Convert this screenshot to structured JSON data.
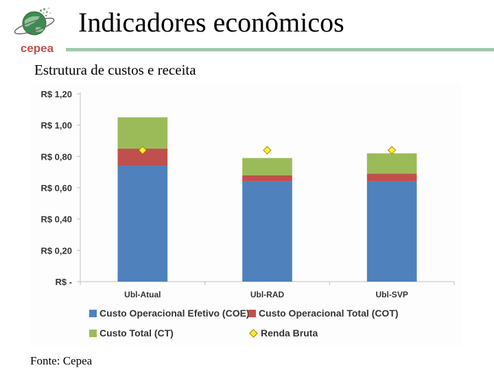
{
  "header": {
    "title": "Indicadores econômicos",
    "subtitle": "Estrutura de custos e receita",
    "logo_text": "cepea"
  },
  "footer": {
    "source": "Fonte: Cepea"
  },
  "colors": {
    "coe": "#4f81bd",
    "cot": "#c0504d",
    "ct": "#9bbb59",
    "renda": "#ffeb3b",
    "title_rule": "#9fc8aa"
  },
  "chart_data": {
    "type": "bar",
    "stacked": true,
    "categories": [
      "Ubl-Atual",
      "Ubl-RAD",
      "Ubl-SVP"
    ],
    "series": [
      {
        "name": "Custo Operacional Efetivo (COE)",
        "values": [
          0.74,
          0.64,
          0.64
        ]
      },
      {
        "name": "Custo Operacional Total (COT)",
        "values": [
          0.11,
          0.04,
          0.05
        ]
      },
      {
        "name": "Custo Total (CT)",
        "values": [
          0.2,
          0.11,
          0.13
        ]
      }
    ],
    "markers": {
      "name": "Renda Bruta",
      "values": [
        0.84,
        0.84,
        0.84
      ]
    },
    "ylim": [
      0,
      1.2
    ],
    "yticks": [
      0,
      0.2,
      0.4,
      0.6,
      0.8,
      1.0,
      1.2
    ],
    "ytick_labels": [
      "R$ -",
      "R$ 0,20",
      "R$ 0,40",
      "R$ 0,60",
      "R$ 0,80",
      "R$ 1,00",
      "R$ 1,20"
    ],
    "grid": false,
    "legend_position": "bottom"
  }
}
